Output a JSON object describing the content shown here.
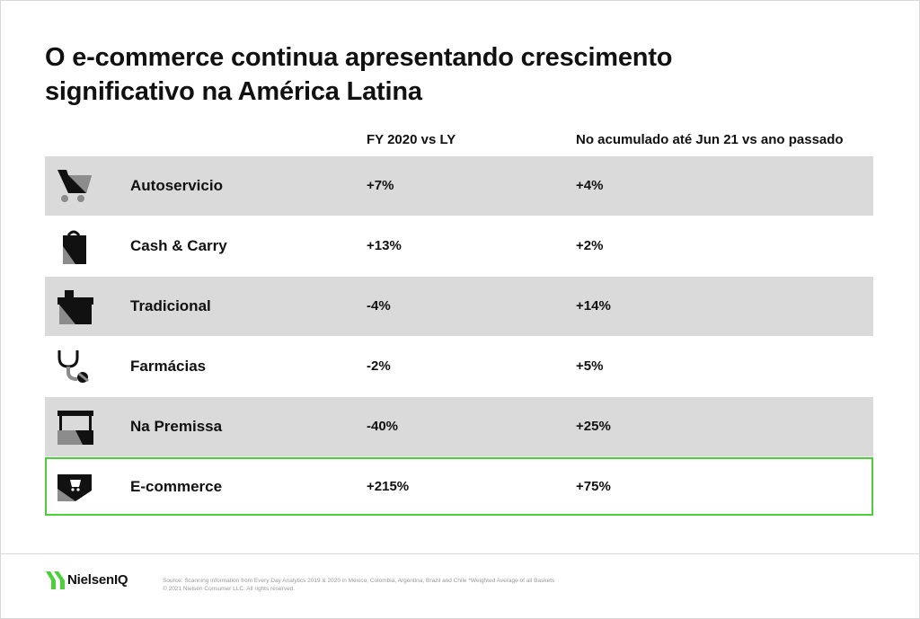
{
  "title": "O e-commerce continua apresentando crescimento significativo na América Latina",
  "title_line1": "O e-commerce continua apresentando crescimento",
  "title_line2": "significativo na América Latina",
  "columns": {
    "fy": "FY 2020 vs LY",
    "ytd": "No acumulado até Jun 21 vs ano passado"
  },
  "rows": [
    {
      "label": "Autoservicio",
      "fy": "+7%",
      "ytd": "+4%",
      "icon": "cart-icon"
    },
    {
      "label": "Cash & Carry",
      "fy": "+13%",
      "ytd": "+2%",
      "icon": "bag-icon"
    },
    {
      "label": "Tradicional",
      "fy": "-4%",
      "ytd": "+14%",
      "icon": "store-icon"
    },
    {
      "label": "Farmácias",
      "fy": "-2%",
      "ytd": "+5%",
      "icon": "stethoscope-icon"
    },
    {
      "label": "Na Premissa",
      "fy": "-40%",
      "ytd": "+25%",
      "icon": "bar-counter-icon"
    },
    {
      "label": "E-commerce",
      "fy": "+215%",
      "ytd": "+75%",
      "icon": "laptop-cart-icon"
    }
  ],
  "brand": {
    "name": "NielsenIQ",
    "accent": "#4ccf3b"
  },
  "source_line1": "Source: Scanning information from Every Day Analytics 2019 & 2020 in México, Colombia, Argentina, Brazil and Chile   *Weighted Average of all Baskets",
  "source_line2": "© 2021 Nielsen Consumer LLC. All rights reserved.",
  "colors": {
    "row_shade": "#dadada",
    "highlight_border": "#4ccf3b",
    "icon_dark": "#111111",
    "icon_gray": "#8c8c8c"
  }
}
